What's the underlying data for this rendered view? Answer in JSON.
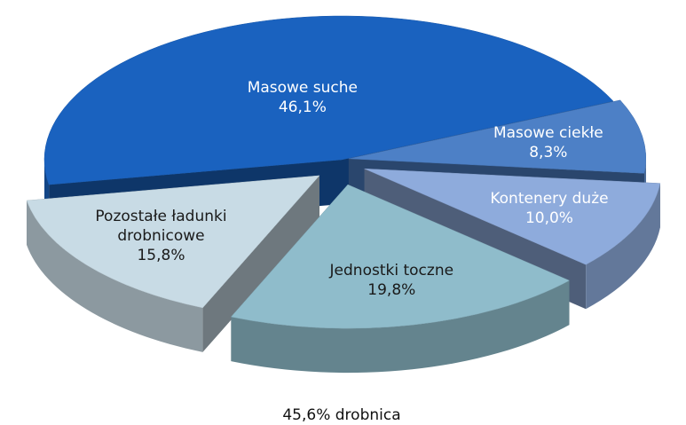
{
  "chart_data": {
    "type": "pie3d",
    "categories": [
      "Masowe suche",
      "Masowe ciekłe",
      "Kontenery duże",
      "Jednostki toczne",
      "Pozostałe ładunki drobnicowe"
    ],
    "values": [
      46.1,
      8.3,
      10.0,
      19.8,
      15.8
    ],
    "value_labels": [
      "46,1%",
      "8,3%",
      "10,0%",
      "19,8%",
      "15,8%"
    ],
    "colors": [
      "#1a62bf",
      "#4d80c6",
      "#8eabdc",
      "#8fbccb",
      "#c8dbe5"
    ],
    "annotation": "45,6% drobnica"
  }
}
